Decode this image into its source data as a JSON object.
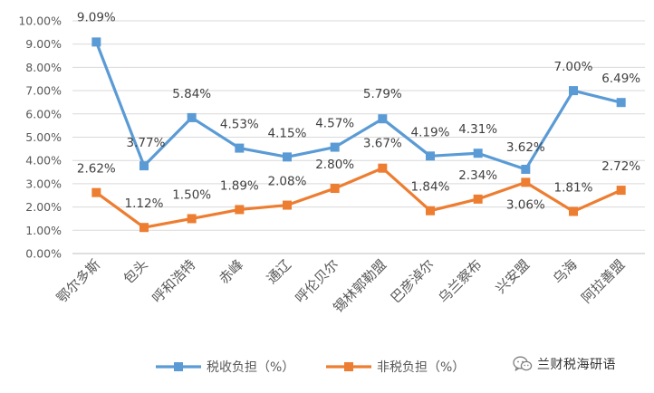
{
  "chart_data": {
    "type": "line",
    "categories": [
      "鄂尔多斯",
      "包头",
      "呼和浩特",
      "赤峰",
      "通辽",
      "呼伦贝尔",
      "锡林郭勒盟",
      "巴彦淖尔",
      "乌兰察布",
      "兴安盟",
      "乌海",
      "阿拉善盟"
    ],
    "series": [
      {
        "name": "税收负担（%）",
        "color": "#5B9BD5",
        "values": [
          9.09,
          3.77,
          5.84,
          4.53,
          4.15,
          4.57,
          5.79,
          4.19,
          4.31,
          3.62,
          7.0,
          6.49
        ],
        "labels": [
          "9.09%",
          "3.77%",
          "5.84%",
          "4.53%",
          "4.15%",
          "4.57%",
          "5.79%",
          "4.19%",
          "4.31%",
          "3.62%",
          "7.00%",
          "6.49%"
        ]
      },
      {
        "name": "非税负担（%）",
        "color": "#ED7D31",
        "values": [
          2.62,
          1.12,
          1.5,
          1.89,
          2.08,
          2.8,
          3.67,
          1.84,
          2.34,
          3.06,
          1.81,
          2.72
        ],
        "labels": [
          "2.62%",
          "1.12%",
          "1.50%",
          "1.89%",
          "2.08%",
          "2.80%",
          "3.67%",
          "1.84%",
          "2.34%",
          "3.06%",
          "1.81%",
          "2.72%"
        ]
      }
    ],
    "y_ticks": [
      "0.00%",
      "1.00%",
      "2.00%",
      "3.00%",
      "4.00%",
      "5.00%",
      "6.00%",
      "7.00%",
      "8.00%",
      "9.00%",
      "10.00%"
    ],
    "ylim": [
      0,
      10
    ],
    "grid": true,
    "legend_position": "bottom"
  },
  "watermark": {
    "text": "兰财税海研语",
    "icon": "wechat-icon"
  }
}
